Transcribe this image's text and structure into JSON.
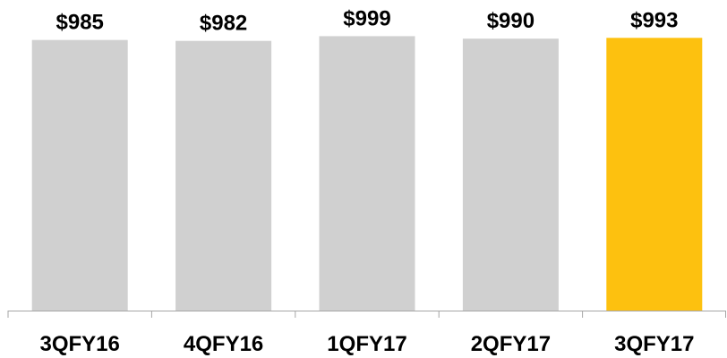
{
  "chart_data": {
    "type": "bar",
    "categories": [
      "3QFY16",
      "4QFY16",
      "1QFY17",
      "2QFY17",
      "3QFY17"
    ],
    "values": [
      985,
      982,
      999,
      990,
      993
    ],
    "value_labels": [
      "$985",
      "$982",
      "$999",
      "$990",
      "$993"
    ],
    "title": "",
    "xlabel": "",
    "ylabel": "",
    "ylim": [
      0,
      1020
    ],
    "grid": false,
    "legend": "none",
    "colors": {
      "default_bar": "#d0d0d0",
      "highlight_bar": "#fdc10f",
      "axis": "#a6a6a6"
    },
    "highlight_index": 4
  }
}
